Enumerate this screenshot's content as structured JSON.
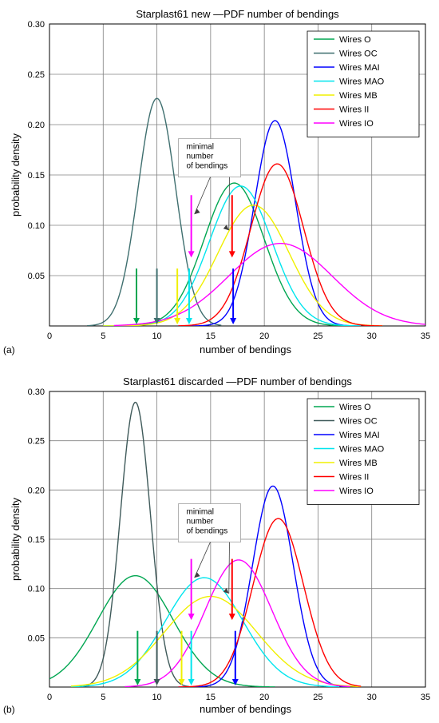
{
  "chart_data": [
    {
      "type": "line",
      "panel_label": "(a)",
      "title": "Starplast61 new —PDF number of bendings",
      "xlabel": "number of bendings",
      "ylabel": "probability density",
      "xlim": [
        0,
        35
      ],
      "ylim": [
        0,
        0.3
      ],
      "xticks": [
        0,
        5,
        10,
        15,
        20,
        25,
        30,
        35
      ],
      "yticks": [
        0.05,
        0.1,
        0.15,
        0.2,
        0.25,
        0.3
      ],
      "ytick_labels": [
        "0.05",
        "0.10",
        "0.15",
        "0.20",
        "0.25",
        "0.30"
      ],
      "grid": true,
      "legend_position": "top-right",
      "series": [
        {
          "name": "Wires O",
          "color": "#00a651",
          "mean": 17.2,
          "sd": 2.8,
          "peak": 0.142,
          "xrange": [
            5,
            28
          ]
        },
        {
          "name": "Wires OC",
          "color": "#3f6f6f",
          "mean": 10.0,
          "sd": 1.75,
          "peak": 0.226,
          "xrange": [
            3.5,
            16
          ]
        },
        {
          "name": "Wires MAI",
          "color": "#0000ff",
          "mean": 21.0,
          "sd": 1.9,
          "peak": 0.204,
          "xrange": [
            12,
            29
          ]
        },
        {
          "name": "Wires MAO",
          "color": "#00e5ee",
          "mean": 17.8,
          "sd": 2.9,
          "peak": 0.139,
          "xrange": [
            5,
            29
          ]
        },
        {
          "name": "Wires MB",
          "color": "#f0f000",
          "mean": 19.0,
          "sd": 3.3,
          "peak": 0.12,
          "xrange": [
            5,
            31
          ]
        },
        {
          "name": "Wires II",
          "color": "#ff0000",
          "mean": 21.2,
          "sd": 2.45,
          "peak": 0.161,
          "xrange": [
            12,
            31
          ]
        },
        {
          "name": "Wires IO",
          "color": "#ff00ff",
          "mean": 21.5,
          "sd": 4.8,
          "peak": 0.082,
          "xrange": [
            6,
            35
          ]
        }
      ],
      "minimal_bendings": [
        {
          "color": "#00a651",
          "x": 8.1
        },
        {
          "color": "#3f6f6f",
          "x": 10.0
        },
        {
          "color": "#f0f000",
          "x": 11.9
        },
        {
          "color": "#00e5ee",
          "x": 13.0
        },
        {
          "color": "#0000ff",
          "x": 17.1
        }
      ],
      "annotation": {
        "lines": [
          "minimal",
          "number",
          "of bendings"
        ],
        "arrows": [
          {
            "color": "#ff00ff",
            "x": 13.2
          },
          {
            "color": "#ff0000",
            "x": 17.0
          }
        ]
      }
    },
    {
      "type": "line",
      "panel_label": "(b)",
      "title": "Starplast61 discarded —PDF number of bendings",
      "xlabel": "number of bendings",
      "ylabel": "probability density",
      "xlim": [
        0,
        35
      ],
      "ylim": [
        0,
        0.3
      ],
      "xticks": [
        0,
        5,
        10,
        15,
        20,
        25,
        30,
        35
      ],
      "yticks": [
        0.05,
        0.1,
        0.15,
        0.2,
        0.25,
        0.3
      ],
      "ytick_labels": [
        "0.05",
        "0.10",
        "0.15",
        "0.20",
        "0.25",
        "0.30"
      ],
      "grid": true,
      "legend_position": "top-right",
      "series": [
        {
          "name": "Wires O",
          "color": "#00a651",
          "mean": 8.0,
          "sd": 3.5,
          "peak": 0.113,
          "xrange": [
            0,
            21
          ]
        },
        {
          "name": "Wires OC",
          "color": "#3f5a5a",
          "mean": 8.0,
          "sd": 1.4,
          "peak": 0.289,
          "xrange": [
            3,
            13
          ]
        },
        {
          "name": "Wires MAI",
          "color": "#0000ff",
          "mean": 20.8,
          "sd": 1.9,
          "peak": 0.204,
          "xrange": [
            12,
            28
          ]
        },
        {
          "name": "Wires MAO",
          "color": "#00e5ee",
          "mean": 14.4,
          "sd": 3.6,
          "peak": 0.111,
          "xrange": [
            2,
            27
          ]
        },
        {
          "name": "Wires MB",
          "color": "#f0f000",
          "mean": 15.0,
          "sd": 4.3,
          "peak": 0.092,
          "xrange": [
            2,
            29
          ]
        },
        {
          "name": "Wires II",
          "color": "#ff0000",
          "mean": 21.3,
          "sd": 2.35,
          "peak": 0.171,
          "xrange": [
            12,
            29
          ]
        },
        {
          "name": "Wires IO",
          "color": "#ff00ff",
          "mean": 17.6,
          "sd": 3.1,
          "peak": 0.129,
          "xrange": [
            7,
            28
          ]
        }
      ],
      "minimal_bendings": [
        {
          "color": "#00a651",
          "x": 8.2
        },
        {
          "color": "#3f5a5a",
          "x": 10.0
        },
        {
          "color": "#f0f000",
          "x": 12.3
        },
        {
          "color": "#00e5ee",
          "x": 13.2
        },
        {
          "color": "#0000ff",
          "x": 17.3
        }
      ],
      "annotation": {
        "lines": [
          "minimal",
          "number",
          "of bendings"
        ],
        "arrows": [
          {
            "color": "#ff00ff",
            "x": 13.2
          },
          {
            "color": "#ff0000",
            "x": 17.0
          }
        ]
      }
    }
  ]
}
